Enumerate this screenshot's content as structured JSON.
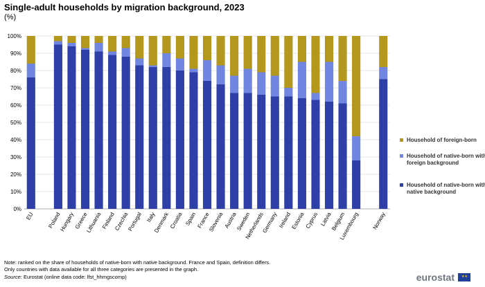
{
  "title": "Single-adult households by migration background, 2023",
  "subtitle": "(%)",
  "notes": [
    "Note: ranked on the share of households of native-born with native background. France and Spain, definition differs.",
    "Only countries with data available for all three categories are presented in the graph."
  ],
  "source": {
    "label": "Source:",
    "text": " Eurostat (online data code: lfst_hhmgscomp)"
  },
  "logo_text": "eurostat",
  "flag_icon": "eu-flag-icon",
  "colors": {
    "native": "#2e40a8",
    "native_foreign_bg": "#7086e0",
    "foreign_born": "#b4981e",
    "grid": "#dddddd"
  },
  "chart_data": {
    "type": "bar",
    "stacked": true,
    "categories": [
      "EU",
      "",
      "Poland",
      "Hungary",
      "Greece",
      "Lithuania",
      "Finland",
      "Czechia",
      "Portugal",
      "Italy",
      "Denmark",
      "Croatia",
      "Spain",
      "France",
      "Slovenia",
      "Austria",
      "Sweden",
      "Netherlands",
      "Germany",
      "Ireland",
      "Estonia",
      "Cyprus",
      "Latvia",
      "Belgium",
      "Luxembourg",
      "",
      "Norway"
    ],
    "series": [
      {
        "name": "Household of native-born with native background",
        "values": [
          76,
          null,
          95,
          94,
          92,
          91,
          89,
          88,
          83,
          82,
          82,
          80,
          79,
          74,
          72,
          67,
          67,
          66,
          65,
          65,
          64,
          63,
          62,
          61,
          28,
          null,
          75
        ]
      },
      {
        "name": "Household of native-born with foreign background",
        "values": [
          8,
          null,
          2,
          2,
          1,
          5,
          2,
          5,
          4,
          1,
          8,
          7,
          2,
          12,
          11,
          10,
          14,
          13,
          12,
          5,
          21,
          4,
          23,
          13,
          14,
          null,
          7
        ]
      },
      {
        "name": "Household of foreign-born",
        "values": [
          16,
          null,
          3,
          4,
          7,
          4,
          9,
          7,
          13,
          17,
          10,
          13,
          19,
          14,
          17,
          23,
          19,
          21,
          23,
          30,
          15,
          33,
          15,
          26,
          58,
          null,
          18
        ]
      }
    ],
    "y_ticks": [
      "0%",
      "10%",
      "20%",
      "30%",
      "40%",
      "50%",
      "60%",
      "70%",
      "80%",
      "90%",
      "100%"
    ],
    "ylim": [
      0,
      100
    ],
    "grid": true,
    "legend_position": "right"
  }
}
